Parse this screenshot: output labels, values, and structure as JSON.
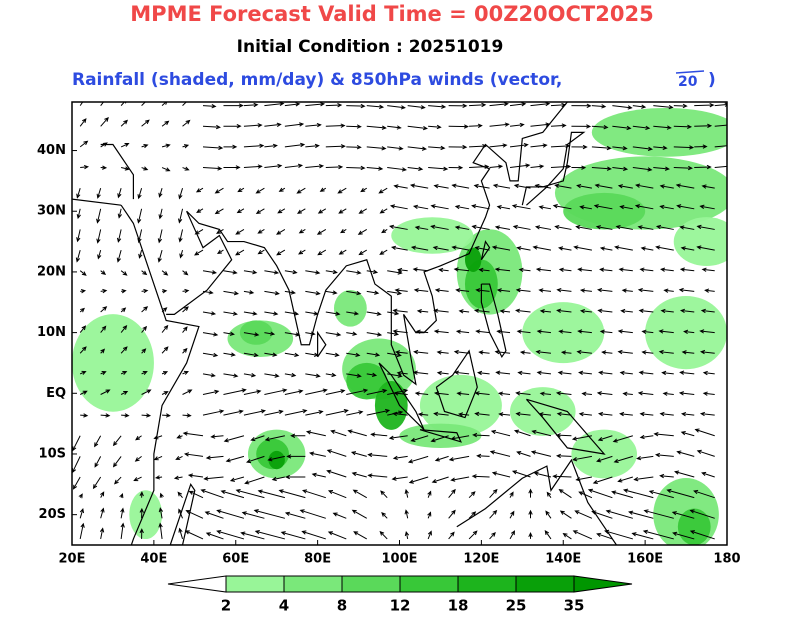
{
  "chart_data": {
    "type": "map",
    "title": "MPME Forecast Valid Time = 00Z20OCT2025",
    "subtitle": "Initial Condition : 20251019",
    "description": "Rainfall (shaded, mm/day) & 850hPa winds (vector,",
    "vector_ref": "20",
    "description_end": ")",
    "xlim": [
      20,
      180
    ],
    "ylim": [
      -25,
      48
    ],
    "xticks": [
      {
        "value": 20,
        "label": "20E"
      },
      {
        "value": 40,
        "label": "40E"
      },
      {
        "value": 60,
        "label": "60E"
      },
      {
        "value": 80,
        "label": "80E"
      },
      {
        "value": 100,
        "label": "100E"
      },
      {
        "value": 120,
        "label": "120E"
      },
      {
        "value": 140,
        "label": "140E"
      },
      {
        "value": 160,
        "label": "160E"
      },
      {
        "value": 180,
        "label": "180"
      }
    ],
    "yticks": [
      {
        "value": -20,
        "label": "20S"
      },
      {
        "value": -10,
        "label": "10S"
      },
      {
        "value": 0,
        "label": "EQ"
      },
      {
        "value": 10,
        "label": "10N"
      },
      {
        "value": 20,
        "label": "20N"
      },
      {
        "value": 30,
        "label": "30N"
      },
      {
        "value": 40,
        "label": "40N"
      }
    ],
    "colorbar": {
      "levels": [
        2,
        4,
        8,
        12,
        18,
        25,
        35
      ],
      "colors": [
        "#ffffff",
        "#98f598",
        "#7ae87a",
        "#5ad95a",
        "#38c838",
        "#1db41d",
        "#09a009",
        "#009600"
      ]
    }
  }
}
